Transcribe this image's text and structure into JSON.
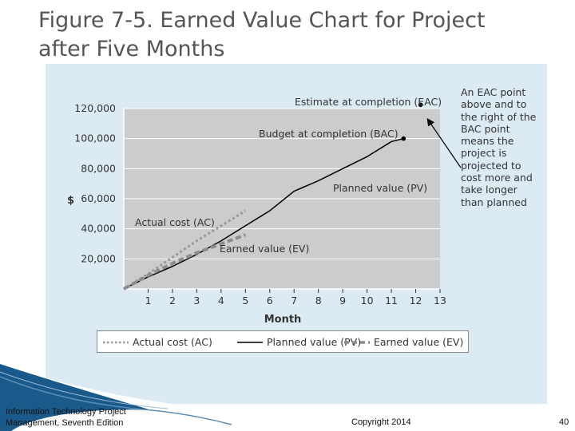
{
  "slide": {
    "title_line1": "Figure 7-5. Earned Value Chart for Project",
    "title_line2": "after Five Months",
    "footer_source_line1": "Information Technology Project",
    "footer_source_line2": "Management, Seventh Edition",
    "footer_copyright": "Copyright 2014",
    "page_number": "40",
    "accent_color": "#1a5a8a",
    "frame_color": "#dceaf4",
    "plot_bg_color": "#cccccc"
  },
  "chart_data": {
    "type": "line",
    "title": "",
    "xlabel": "Month",
    "ylabel": "$",
    "xlim": [
      0,
      13
    ],
    "ylim": [
      0,
      120000
    ],
    "x_ticks": [
      1,
      2,
      3,
      4,
      5,
      6,
      7,
      8,
      9,
      10,
      11,
      12,
      13
    ],
    "y_ticks": [
      {
        "value": 20000,
        "label": "20,000"
      },
      {
        "value": 40000,
        "label": "40,000"
      },
      {
        "value": 60000,
        "label": "60,000"
      },
      {
        "value": 80000,
        "label": "80,000"
      },
      {
        "value": 100000,
        "label": "100,000"
      },
      {
        "value": 120000,
        "label": "120,000"
      }
    ],
    "grid": true,
    "legend": "bottom",
    "series": [
      {
        "name": "Planned value (PV)",
        "style": "solid",
        "color": "#000000",
        "x": [
          0,
          1,
          2,
          3,
          4,
          5,
          6,
          7,
          8,
          9,
          10,
          11,
          11.5
        ],
        "y": [
          0,
          8000,
          15000,
          23000,
          32000,
          42000,
          52000,
          65000,
          72000,
          80000,
          88000,
          98000,
          100000
        ]
      },
      {
        "name": "Actual cost (AC)",
        "style": "dotted",
        "color": "#999999",
        "x": [
          0,
          1,
          2,
          3,
          4,
          5
        ],
        "y": [
          0,
          10000,
          21000,
          32000,
          42000,
          52000
        ]
      },
      {
        "name": "Earned value (EV)",
        "style": "dashed",
        "color": "#8c8c8c",
        "x": [
          0,
          1,
          2,
          3,
          4,
          5
        ],
        "y": [
          0,
          9000,
          17000,
          24000,
          30000,
          36000
        ]
      }
    ],
    "points": [
      {
        "label": "Estimate at completion (EAC)",
        "x": 12.2,
        "y": 122500
      },
      {
        "label": "Budget at completion (BAC)",
        "x": 11.5,
        "y": 100000
      }
    ],
    "annotations": {
      "eac": "Estimate at completion (EAC)",
      "bac": "Budget at completion (BAC)",
      "pv": "Planned value (PV)",
      "ac": "Actual cost (AC)",
      "ev": "Earned value (EV)",
      "callout": "An EAC point above and to the right of the BAC point means the project is projected to cost more and take longer than planned"
    }
  }
}
